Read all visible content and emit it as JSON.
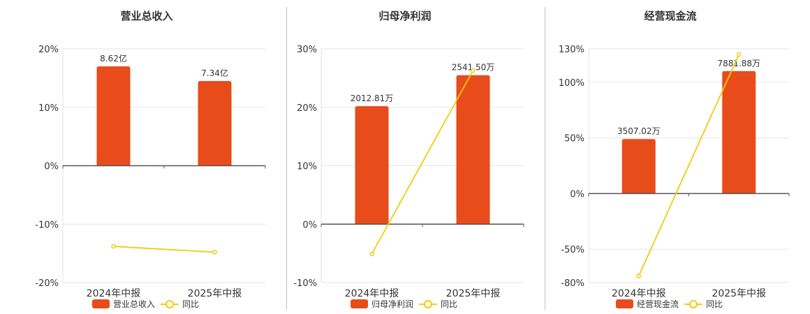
{
  "colors": {
    "bar": "#e84c1b",
    "line": "#f2cc0c",
    "grid": "#e6e6e6",
    "axis": "#555555",
    "text": "#333333"
  },
  "legend_line_label": "同比",
  "chart_data": [
    {
      "type": "bar",
      "title": "营业总收入",
      "categories": [
        "2024年中报",
        "2025年中报"
      ],
      "series": [
        {
          "name": "营业总收入",
          "type": "bar",
          "values": [
            17.0,
            14.5
          ],
          "labels": [
            "8.62亿",
            "7.34亿"
          ]
        },
        {
          "name": "同比",
          "type": "line",
          "values": [
            -13.8,
            -14.8
          ]
        }
      ],
      "y_ticks": [
        "20%",
        "10%",
        "0%",
        "-10%",
        "-20%"
      ],
      "ylim": [
        -20,
        20
      ],
      "grid": true,
      "legend": "bottom"
    },
    {
      "type": "bar",
      "title": "归母净利润",
      "categories": [
        "2024年中报",
        "2025年中报"
      ],
      "series": [
        {
          "name": "归母净利润",
          "type": "bar",
          "values": [
            20.2,
            25.5
          ],
          "labels": [
            "2012.81万",
            "2541.50万"
          ]
        },
        {
          "name": "同比",
          "type": "line",
          "values": [
            -5.1,
            26.3
          ]
        }
      ],
      "y_ticks": [
        "30%",
        "20%",
        "10%",
        "0%",
        "-10%"
      ],
      "ylim": [
        -10,
        30
      ],
      "grid": true,
      "legend": "bottom"
    },
    {
      "type": "bar",
      "title": "经营现金流",
      "categories": [
        "2024年中报",
        "2025年中报"
      ],
      "series": [
        {
          "name": "经营现金流",
          "type": "bar",
          "values": [
            49,
            110
          ],
          "labels": [
            "3507.02万",
            "7881.88万"
          ]
        },
        {
          "name": "同比",
          "type": "line",
          "values": [
            -74,
            125
          ]
        }
      ],
      "y_ticks": [
        "130%",
        "100%",
        "50%",
        "0%",
        "-50%",
        "-80%"
      ],
      "ylim": [
        -80,
        130
      ],
      "grid": true,
      "legend": "bottom"
    }
  ]
}
